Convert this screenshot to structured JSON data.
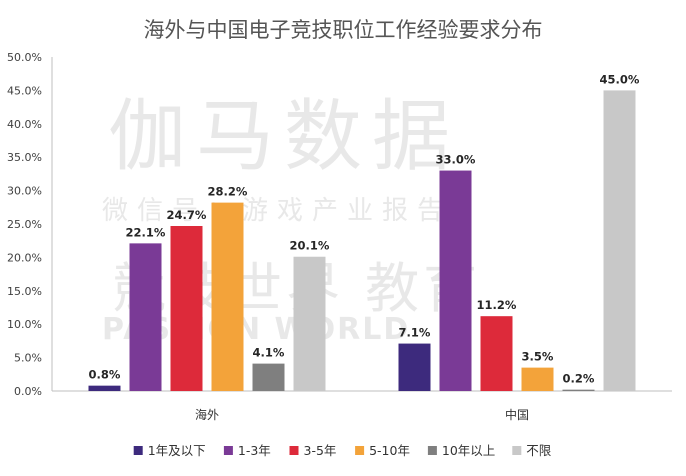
{
  "chart_data": {
    "type": "bar",
    "title": "海外与中国电子竞技职位工作经验要求分布",
    "categories": [
      "海外",
      "中国"
    ],
    "series": [
      {
        "name": "1年及以下",
        "color": "#3d2a7d",
        "values": [
          0.8,
          7.1
        ],
        "labels": [
          "0.8%",
          "7.1%"
        ]
      },
      {
        "name": "1-3年",
        "color": "#7a3a96",
        "values": [
          22.1,
          33.0
        ],
        "labels": [
          "22.1%",
          "33.0%"
        ]
      },
      {
        "name": "3-5年",
        "color": "#dd2a3a",
        "values": [
          24.7,
          11.2
        ],
        "labels": [
          "24.7%",
          "11.2%"
        ]
      },
      {
        "name": "5-10年",
        "color": "#f3a33a",
        "values": [
          28.2,
          3.5
        ],
        "labels": [
          "28.2%",
          "3.5%"
        ]
      },
      {
        "name": "10年以上",
        "color": "#7f7f7f",
        "values": [
          4.1,
          0.2
        ],
        "labels": [
          "4.1%",
          "0.2%"
        ]
      },
      {
        "name": "不限",
        "color": "#c8c8c8",
        "values": [
          20.1,
          45.0
        ],
        "labels": [
          "20.1%",
          "45.0%"
        ]
      }
    ],
    "yticks": [
      "0.0%",
      "5.0%",
      "10.0%",
      "15.0%",
      "20.0%",
      "25.0%",
      "30.0%",
      "35.0%",
      "40.0%",
      "45.0%",
      "50.0%"
    ],
    "ylim": [
      0,
      50
    ],
    "grid": false,
    "legend_position": "bottom",
    "xlabel": "",
    "ylabel": ""
  },
  "watermark": {
    "line1": "伽马数据",
    "line2": "微信号：游戏产业报告",
    "line3": "競技世界 教育",
    "line4": "PASSION WORLD"
  }
}
